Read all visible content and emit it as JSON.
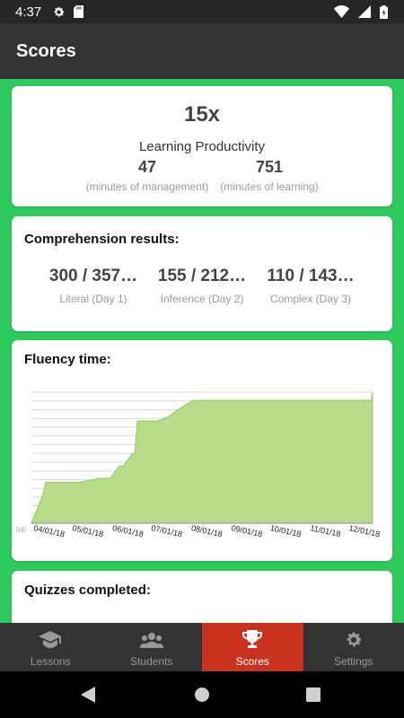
{
  "status_bar": {
    "time": "4:37"
  },
  "app_bar": {
    "title": "Scores"
  },
  "productivity": {
    "multiplier": "15x",
    "label": "Learning Productivity",
    "management_minutes": "47",
    "management_label": "(minutes of management)",
    "learning_minutes": "751",
    "learning_label": "(minutes of learning)"
  },
  "comprehension": {
    "title": "Comprehension results:",
    "results": [
      {
        "value": "300 / 357…",
        "label": "Literal (Day 1)"
      },
      {
        "value": "155 / 212…",
        "label": "Inference (Day 2)"
      },
      {
        "value": "110 / 143…",
        "label": "Complex (Day 3)"
      }
    ]
  },
  "fluency": {
    "title": "Fluency time:"
  },
  "quizzes": {
    "title": "Quizzes completed:"
  },
  "nav": {
    "items": [
      {
        "label": "Lessons",
        "icon": "graduation-cap-icon",
        "active": false
      },
      {
        "label": "Students",
        "icon": "students-icon",
        "active": false
      },
      {
        "label": "Scores",
        "icon": "trophy-icon",
        "active": true
      },
      {
        "label": "Settings",
        "icon": "gear-icon",
        "active": false
      }
    ]
  },
  "colors": {
    "background": "#2ec95c",
    "app_bar": "#333333",
    "active_tab": "#c8321f",
    "area_fill": "#b7dd8a",
    "area_stroke": "#8fca5e"
  },
  "chart_data": {
    "type": "area",
    "x_ticks": [
      "04/01/18",
      "05/01/18",
      "06/01/18",
      "07/01/18",
      "08/01/18",
      "09/01/18",
      "10/01/18",
      "11/01/18",
      "12/01/18"
    ],
    "x_truncated_start_label": "04/",
    "x": [
      "2018-04-01",
      "2018-04-10",
      "2018-04-12",
      "2018-05-01",
      "2018-05-08",
      "2018-05-24",
      "2018-05-26",
      "2018-06-01",
      "2018-06-08",
      "2018-06-11",
      "2018-06-18",
      "2018-06-20",
      "2018-06-22",
      "2018-07-08",
      "2018-07-16",
      "2018-07-20",
      "2018-07-30",
      "2018-08-04",
      "2018-08-20",
      "2018-12-20",
      "2018-12-21"
    ],
    "y": [
      0,
      7,
      10,
      10,
      10,
      11,
      11,
      11,
      14,
      14,
      17,
      17,
      25,
      25,
      26,
      27,
      29,
      30,
      30,
      30,
      32
    ],
    "ylim": [
      0,
      32
    ],
    "grid": true,
    "title": "Fluency time:",
    "xlabel": "",
    "ylabel": ""
  }
}
